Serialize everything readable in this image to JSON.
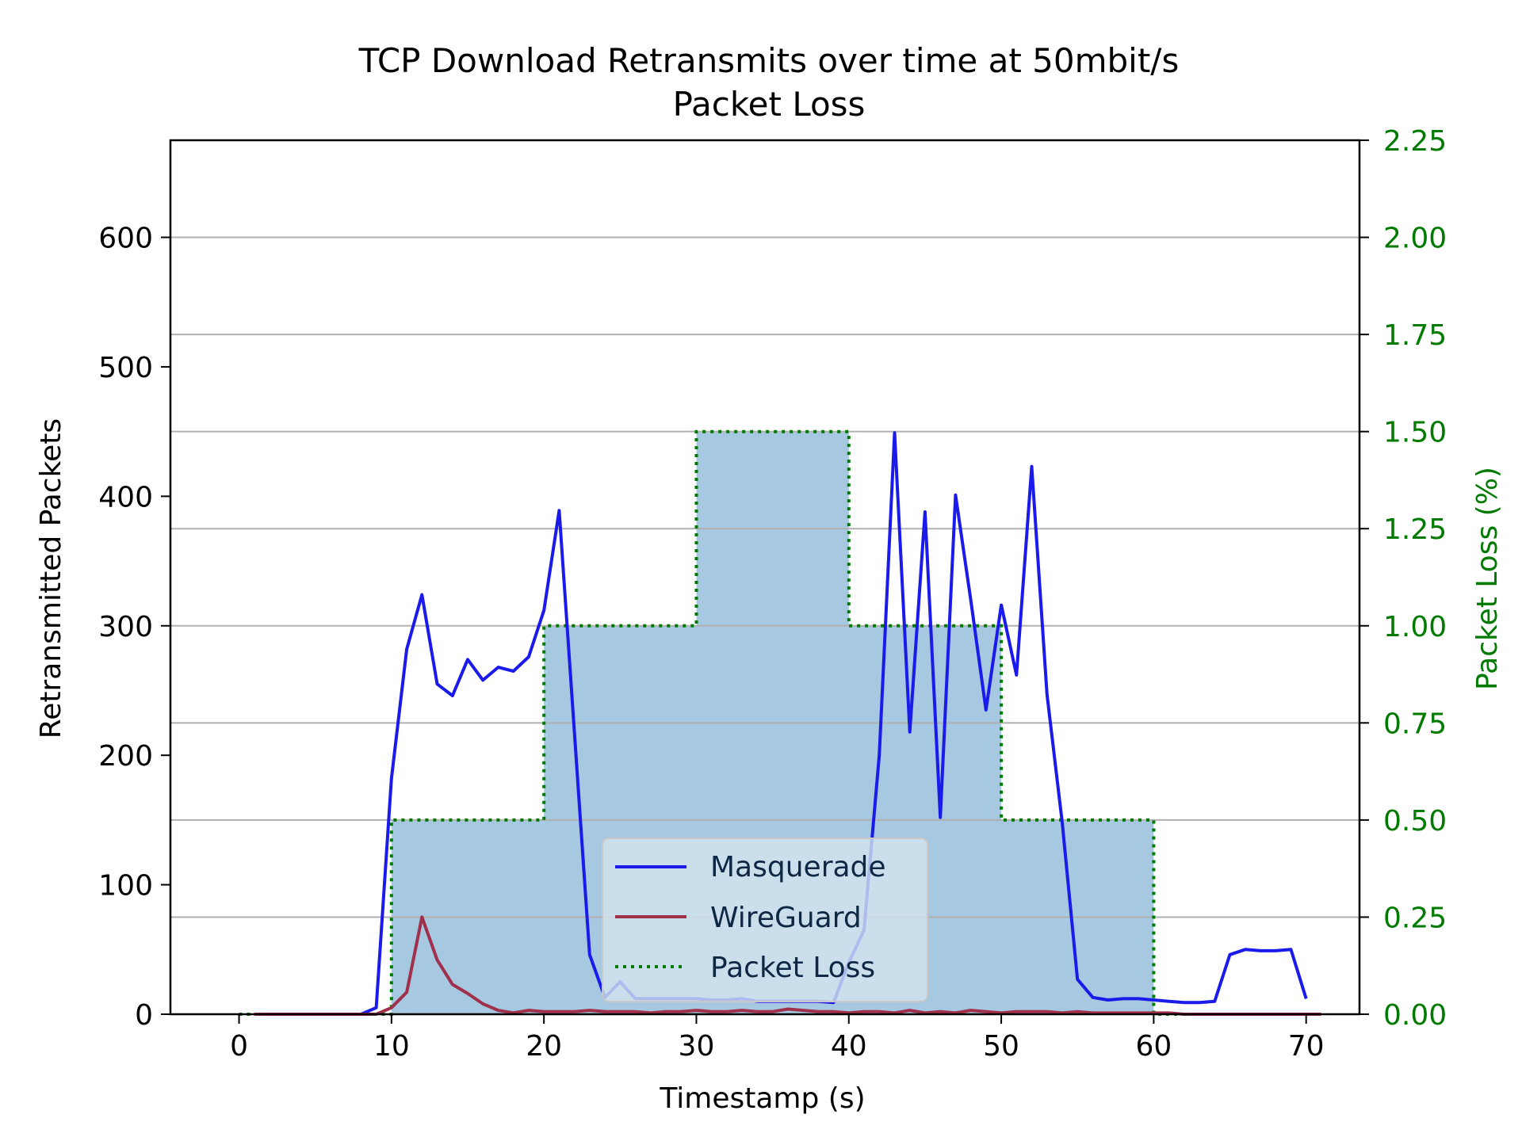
{
  "chart_data": {
    "type": "line",
    "title_line1": "TCP Download Retransmits over time at 50mbit/s",
    "title_line2": "Packet Loss",
    "xlabel": "Timestamp (s)",
    "ylabel": "Retransmitted Packets",
    "y2label": "Packet Loss (%)",
    "xlim": [
      -4.5,
      73.5
    ],
    "ylim": [
      0,
      675
    ],
    "y2lim": [
      0,
      2.25
    ],
    "xticks": [
      0,
      10,
      20,
      30,
      40,
      50,
      60,
      70
    ],
    "yticks": [
      0,
      100,
      200,
      300,
      400,
      500,
      600
    ],
    "y2ticks": [
      "0.00",
      "0.25",
      "0.50",
      "0.75",
      "1.00",
      "1.25",
      "1.50",
      "1.75",
      "2.00",
      "2.25"
    ],
    "grid": "horizontal lines at right-axis ticks",
    "legend_position": "lower-center",
    "series": [
      {
        "name": "Masquerade",
        "color": "#1a1aeb",
        "x": [
          1,
          2,
          3,
          4,
          5,
          6,
          7,
          8,
          9,
          10,
          11,
          12,
          13,
          14,
          15,
          16,
          17,
          18,
          19,
          20,
          21,
          22,
          23,
          24,
          25,
          26,
          27,
          28,
          29,
          30,
          31,
          32,
          33,
          34,
          35,
          36,
          37,
          38,
          39,
          40,
          41,
          42,
          43,
          44,
          45,
          46,
          47,
          48,
          49,
          50,
          51,
          52,
          53,
          54,
          55,
          56,
          57,
          58,
          59,
          60,
          61,
          62,
          63,
          64,
          65,
          66,
          67,
          68,
          69,
          70
        ],
        "y": [
          0,
          0,
          0,
          0,
          0,
          0,
          0,
          0,
          5,
          182,
          282,
          324,
          255,
          246,
          274,
          258,
          268,
          265,
          276,
          312,
          389,
          218,
          46,
          13,
          25,
          12,
          12,
          12,
          12,
          12,
          11,
          11,
          12,
          10,
          10,
          10,
          10,
          10,
          9,
          40,
          65,
          200,
          449,
          218,
          388,
          152,
          401,
          320,
          235,
          316,
          262,
          423,
          247,
          148,
          27,
          13,
          11,
          12,
          12,
          11,
          10,
          9,
          9,
          10,
          46,
          50,
          49,
          49,
          50,
          12
        ]
      },
      {
        "name": "WireGuard",
        "color": "#a0304b",
        "x": [
          1,
          2,
          3,
          4,
          5,
          6,
          7,
          8,
          9,
          10,
          11,
          12,
          13,
          14,
          15,
          16,
          17,
          18,
          19,
          20,
          21,
          22,
          23,
          24,
          25,
          26,
          27,
          28,
          29,
          30,
          31,
          32,
          33,
          34,
          35,
          36,
          37,
          38,
          39,
          40,
          41,
          42,
          43,
          44,
          45,
          46,
          47,
          48,
          49,
          50,
          51,
          52,
          53,
          54,
          55,
          56,
          57,
          58,
          59,
          60,
          61,
          62,
          63,
          64,
          65,
          66,
          67,
          68,
          69,
          70,
          71
        ],
        "y": [
          0,
          0,
          0,
          0,
          0,
          0,
          0,
          0,
          0,
          5,
          17,
          75,
          42,
          23,
          16,
          8,
          3,
          1,
          3,
          2,
          2,
          2,
          3,
          2,
          2,
          2,
          1,
          2,
          2,
          3,
          2,
          2,
          3,
          2,
          2,
          4,
          3,
          2,
          2,
          1,
          2,
          2,
          1,
          3,
          1,
          2,
          1,
          3,
          2,
          1,
          2,
          2,
          2,
          1,
          2,
          1,
          1,
          1,
          1,
          1,
          1,
          0,
          0,
          0,
          0,
          0,
          0,
          0,
          0,
          0,
          0
        ]
      }
    ],
    "packet_loss": {
      "name": "Packet Loss",
      "line_color": "#007a00",
      "fill_color": "#a6c8e0",
      "x": [
        0,
        10,
        10,
        20,
        20,
        30,
        30,
        40,
        40,
        50,
        50,
        60,
        60,
        70
      ],
      "y": [
        0,
        0,
        0.5,
        0.5,
        1.0,
        1.0,
        1.5,
        1.5,
        1.0,
        1.0,
        0.5,
        0.5,
        0,
        0
      ]
    }
  }
}
